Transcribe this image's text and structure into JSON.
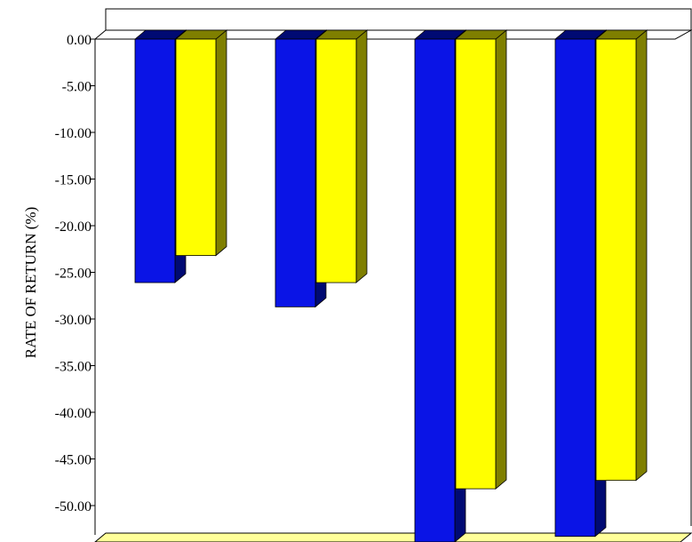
{
  "chart_data": {
    "type": "bar",
    "style": "3d",
    "title": "",
    "xlabel": "",
    "ylabel": "RATE OF RETURN (%)",
    "categories": [
      "",
      "",
      "",
      ""
    ],
    "series": [
      {
        "color": "#0a14e6",
        "side_color": "#000a73",
        "values": [
          -26.1,
          -28.7,
          -53.9,
          -53.3
        ]
      },
      {
        "color": "#ffff00",
        "side_color": "#7f7f00",
        "values": [
          -23.2,
          -26.1,
          -48.2,
          -47.3
        ]
      }
    ],
    "yticks": [
      "0.00",
      "-5.00",
      "-10.00",
      "-15.00",
      "-20.00",
      "-25.00",
      "-30.00",
      "-35.00",
      "-40.00",
      "-45.00",
      "-50.00"
    ],
    "ylim": [
      -54,
      0
    ],
    "grid": false,
    "legend": "none",
    "colors": {
      "floor": "#ffff99",
      "frame": "#000000",
      "background": "#ffffff"
    }
  }
}
